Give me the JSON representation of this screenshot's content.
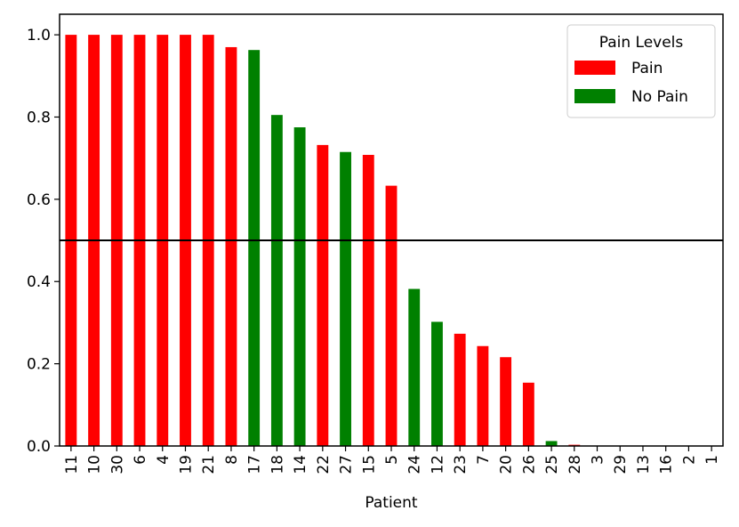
{
  "chart_data": {
    "type": "bar",
    "xlabel": "Patient",
    "ylabel": "",
    "ylim": [
      0,
      1.05
    ],
    "yticks": [
      "0.0",
      "0.2",
      "0.4",
      "0.6",
      "0.8",
      "1.0"
    ],
    "ytick_values": [
      0,
      0.2,
      0.4,
      0.6,
      0.8,
      1.0
    ],
    "threshold": 0.5,
    "categories": [
      "11",
      "10",
      "30",
      "6",
      "4",
      "19",
      "21",
      "8",
      "17",
      "18",
      "14",
      "22",
      "27",
      "15",
      "5",
      "24",
      "12",
      "23",
      "7",
      "20",
      "26",
      "25",
      "28",
      "3",
      "29",
      "13",
      "16",
      "2",
      "1"
    ],
    "values": [
      1.0,
      1.0,
      1.0,
      1.0,
      1.0,
      1.0,
      1.0,
      0.97,
      0.963,
      0.805,
      0.775,
      0.732,
      0.715,
      0.708,
      0.633,
      0.382,
      0.302,
      0.273,
      0.243,
      0.216,
      0.154,
      0.012,
      0.003,
      0,
      0,
      0,
      0,
      0,
      0
    ],
    "groups": [
      "Pain",
      "Pain",
      "Pain",
      "Pain",
      "Pain",
      "Pain",
      "Pain",
      "Pain",
      "No Pain",
      "No Pain",
      "No Pain",
      "Pain",
      "No Pain",
      "Pain",
      "Pain",
      "No Pain",
      "No Pain",
      "Pain",
      "Pain",
      "Pain",
      "Pain",
      "No Pain",
      "Pain",
      "Pain",
      "Pain",
      "Pain",
      "Pain",
      "Pain",
      "Pain"
    ],
    "legend": {
      "title": "Pain Levels",
      "placement": "top-right",
      "items": [
        {
          "label": "Pain",
          "color": "#ff0000"
        },
        {
          "label": "No Pain",
          "color": "#008000"
        }
      ]
    },
    "grid": false,
    "threshold_color": "#000000"
  }
}
